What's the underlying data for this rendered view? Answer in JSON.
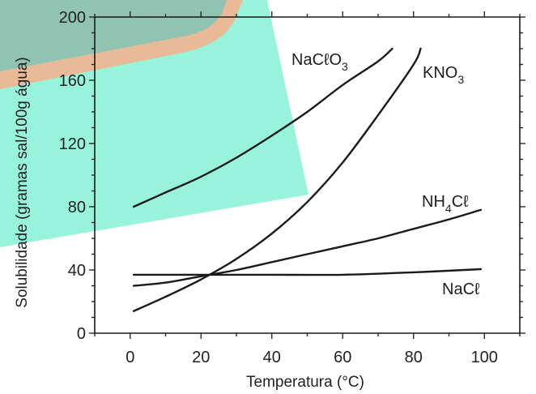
{
  "chart_data": {
    "type": "line",
    "title": "",
    "xlabel": "Temperatura (°C)",
    "ylabel": "Solubilidade (gramas sal/100g água)",
    "xlim": [
      -10,
      110
    ],
    "ylim": [
      0,
      200
    ],
    "x_ticks": [
      0,
      20,
      40,
      60,
      80,
      100
    ],
    "y_ticks": [
      0,
      40,
      80,
      120,
      160,
      200
    ],
    "grid": false,
    "colors": {
      "line": "#1a1a1a",
      "axis": "#1a1a1a",
      "overlay": "#6ff0cc",
      "overlay_border": "#f2b48f",
      "overlay_dark": "#8a9a92"
    },
    "series": [
      {
        "name": "NaClO3",
        "label_main": "NaCℓO",
        "label_sub": "3",
        "x": [
          1,
          10,
          20,
          30,
          40,
          50,
          60,
          70,
          74
        ],
        "y": [
          80,
          89,
          99,
          111,
          125,
          140,
          157,
          172,
          180
        ]
      },
      {
        "name": "KNO3",
        "label_main": "KNO",
        "label_sub": "3",
        "x": [
          1,
          10,
          20,
          30,
          40,
          50,
          60,
          70,
          80,
          82
        ],
        "y": [
          14,
          23,
          34,
          47,
          63,
          83,
          108,
          138,
          170,
          180
        ]
      },
      {
        "name": "NH4Cl",
        "label_main": "NH",
        "label_sub": "4",
        "label_tail": "Cℓ",
        "x": [
          1,
          10,
          20,
          30,
          40,
          50,
          60,
          70,
          80,
          90,
          99
        ],
        "y": [
          30,
          32,
          36,
          40,
          45,
          50,
          55,
          60,
          66,
          72,
          78
        ]
      },
      {
        "name": "NaCl",
        "label_main": "NaCℓ",
        "x": [
          1,
          20,
          40,
          60,
          80,
          99
        ],
        "y": [
          37,
          37,
          37,
          37,
          38.5,
          40.5
        ]
      }
    ]
  }
}
